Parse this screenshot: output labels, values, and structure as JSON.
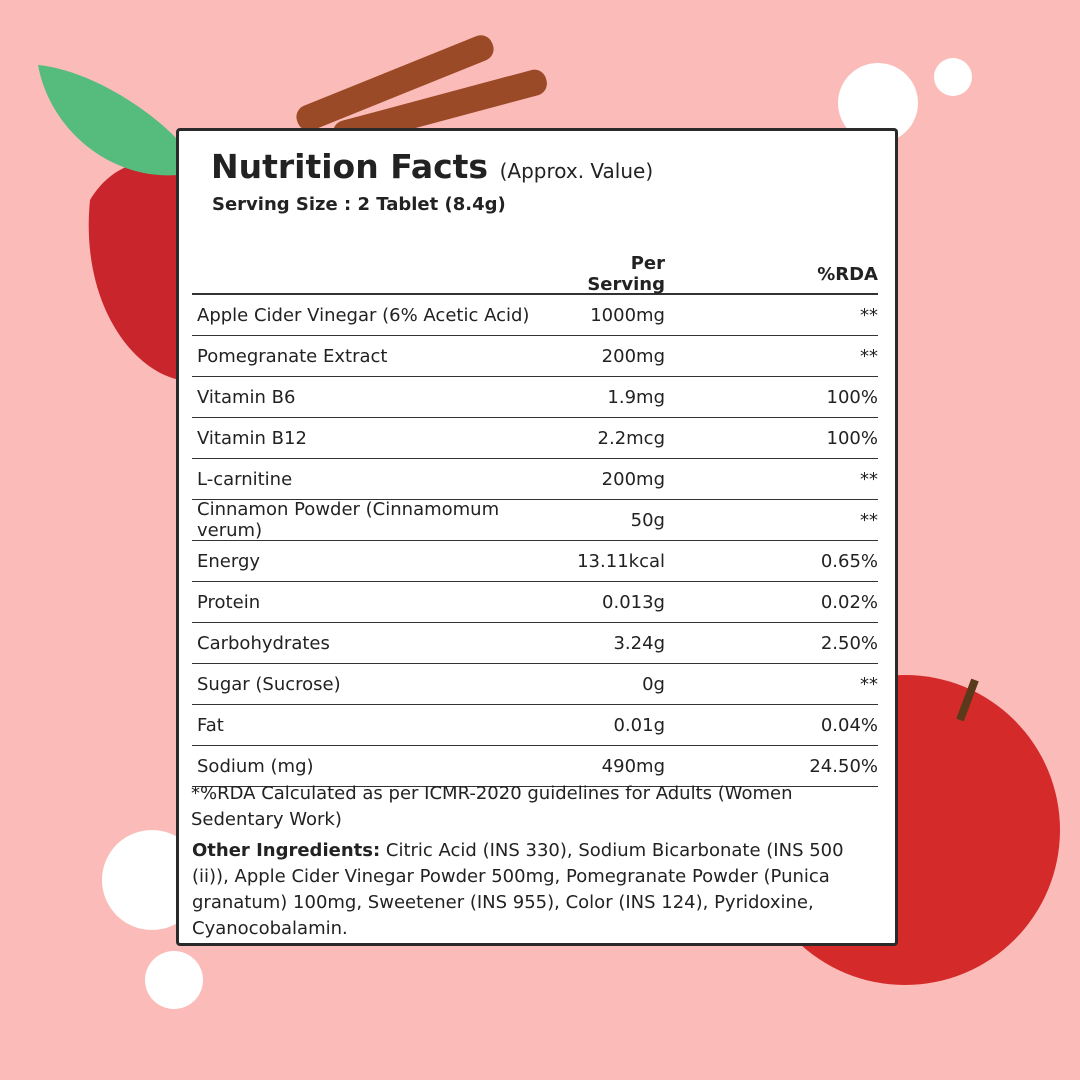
{
  "header": {
    "title": "Nutrition Facts",
    "subtitle": "(Approx. Value)",
    "serving": "Serving Size : 2 Tablet (8.4g)"
  },
  "table": {
    "columns": [
      "Per Serving",
      "%RDA"
    ],
    "rows": [
      [
        "Apple Cider Vinegar (6% Acetic Acid)",
        "1000mg",
        "**"
      ],
      [
        "Pomegranate Extract",
        "200mg",
        "**"
      ],
      [
        "Vitamin B6",
        "1.9mg",
        "100%"
      ],
      [
        "Vitamin B12",
        "2.2mcg",
        "100%"
      ],
      [
        "L-carnitine",
        "200mg",
        "**"
      ],
      [
        "Cinnamon Powder (Cinnamomum verum)",
        "50g",
        "**"
      ],
      [
        "Energy",
        "13.11kcal",
        "0.65%"
      ],
      [
        "Protein",
        "0.013g",
        "0.02%"
      ],
      [
        "Carbohydrates",
        "3.24g",
        "2.50%"
      ],
      [
        "Sugar (Sucrose)",
        "0g",
        "**"
      ],
      [
        "Fat",
        "0.01g",
        "0.04%"
      ],
      [
        "Sodium (mg)",
        "490mg",
        "24.50%"
      ]
    ]
  },
  "footnote": "*%RDA Calculated as per ICMR-2020 guidelines for Adults (Women Sedentary Work)",
  "other_ingredients": {
    "label": "Other Ingredients:",
    "text": "Citric Acid (INS 330), Sodium Bicarbonate (INS 500 (ii)), Apple Cider Vinegar Powder 500mg, Pomegranate Powder (Punica granatum) 100mg, Sweetener (INS 955), Color (INS 124), Pyridoxine, Cyanocobalamin."
  }
}
